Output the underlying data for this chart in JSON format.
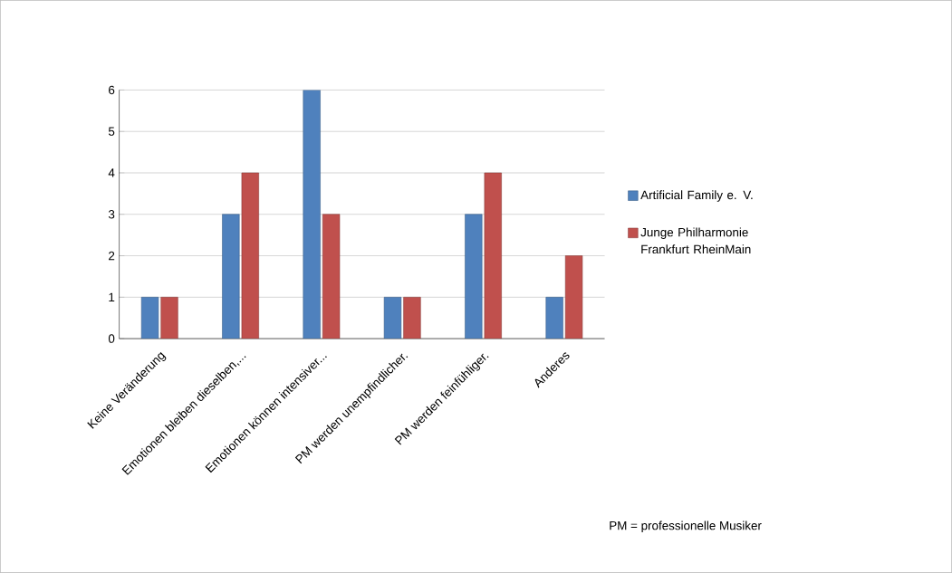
{
  "chart_data": {
    "type": "bar",
    "categories": [
      "Keine Veränderung",
      "Emotionen bleiben dieselben,...",
      "Emotionen können intensiver...",
      "PM werden unempfindlicher.",
      "PM werden feinfühliger.",
      "Anderes"
    ],
    "series": [
      {
        "name": "Artificial Family e. V.",
        "color": "#4f81bd",
        "values": [
          1,
          3,
          6,
          1,
          3,
          1
        ]
      },
      {
        "name": "Junge Philharmonie Frankfurt RheinMain",
        "color": "#c0504d",
        "values": [
          1,
          4,
          3,
          1,
          4,
          2
        ]
      }
    ],
    "ylim": [
      0,
      6
    ],
    "yticks": [
      0,
      1,
      2,
      3,
      4,
      5,
      6
    ],
    "grid": "y",
    "legend": "right",
    "annotations": [
      "PM = professionelle Musiker"
    ]
  }
}
